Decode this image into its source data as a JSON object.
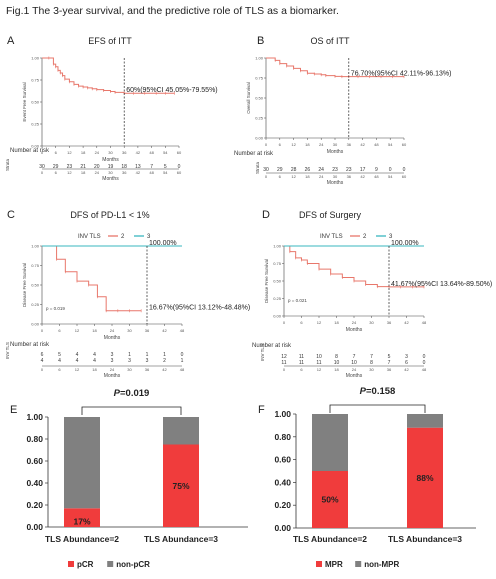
{
  "figure_title": "Fig.1 The 3-year survival, and the predictive role of TLS as a biomarker.",
  "chart_data": [
    {
      "id": "A",
      "panel_letter": "A",
      "type": "line",
      "title": "EFS of ITT",
      "ylabel": "Event Free Survival",
      "xlabel": "Months",
      "xlim": [
        0,
        60
      ],
      "ylim": [
        0,
        1
      ],
      "x_ticks": [
        0,
        6,
        12,
        18,
        24,
        30,
        36,
        42,
        48,
        54,
        60
      ],
      "y_ticks": [
        "0.00",
        "0.25",
        "0.50",
        "0.75",
        "1.00"
      ],
      "series": [
        {
          "color": "#e8776b",
          "x": [
            0,
            3,
            5,
            6,
            7,
            8,
            9,
            10,
            12,
            14,
            16,
            18,
            20,
            22,
            24,
            27,
            30,
            32,
            36,
            40,
            45,
            50,
            54,
            58
          ],
          "y": [
            1.0,
            1.0,
            0.93,
            0.9,
            0.86,
            0.83,
            0.8,
            0.76,
            0.73,
            0.7,
            0.68,
            0.67,
            0.66,
            0.65,
            0.64,
            0.63,
            0.62,
            0.61,
            0.6,
            0.6,
            0.6,
            0.6,
            0.6,
            0.6
          ]
        }
      ],
      "annotation": {
        "text": "60%(95%CI 45.05%-79.55%)",
        "x": 36,
        "y": 0.6
      },
      "risk_table": {
        "header": "Number at risk",
        "row_label": "Strata",
        "rows": [
          [
            "30",
            "29",
            "23",
            "21",
            "20",
            "19",
            "18",
            "13",
            "7",
            "5",
            "0"
          ]
        ],
        "x": [
          0,
          6,
          12,
          18,
          24,
          30,
          36,
          42,
          48,
          54,
          60
        ],
        "xlabel": "Months"
      }
    },
    {
      "id": "B",
      "panel_letter": "B",
      "type": "line",
      "title": "OS of ITT",
      "ylabel": "Overall Survival",
      "xlabel": "Months",
      "xlim": [
        0,
        60
      ],
      "ylim": [
        0,
        1
      ],
      "x_ticks": [
        0,
        6,
        12,
        18,
        24,
        30,
        36,
        42,
        48,
        54,
        60
      ],
      "y_ticks": [
        "0.00",
        "0.25",
        "0.50",
        "0.75",
        "1.00"
      ],
      "series": [
        {
          "color": "#e8776b",
          "x": [
            0,
            4,
            6,
            9,
            12,
            15,
            18,
            21,
            24,
            26,
            30,
            33,
            36,
            40,
            45,
            50,
            55,
            60
          ],
          "y": [
            1.0,
            0.97,
            0.93,
            0.9,
            0.87,
            0.84,
            0.81,
            0.8,
            0.79,
            0.78,
            0.77,
            0.767,
            0.767,
            0.767,
            0.767,
            0.767,
            0.767,
            0.767
          ]
        }
      ],
      "annotation": {
        "text": "76.70%(95%CI 42.11%-96.13%)",
        "x": 36,
        "y": 0.767
      },
      "risk_table": {
        "header": "Number at risk",
        "row_label": "Strata",
        "rows": [
          [
            "30",
            "29",
            "28",
            "26",
            "24",
            "23",
            "23",
            "17",
            "9",
            "0",
            "0"
          ]
        ],
        "x": [
          0,
          6,
          12,
          18,
          24,
          30,
          36,
          42,
          48,
          54,
          60
        ],
        "xlabel": "Months"
      }
    },
    {
      "id": "C",
      "panel_letter": "C",
      "type": "line",
      "title": "DFS of PD-L1 < 1%",
      "legend_title": "INV TLS",
      "legend_position": "top",
      "ylabel": "Disease Free Survival",
      "xlabel": "Months",
      "xlim": [
        0,
        48
      ],
      "ylim": [
        0,
        1
      ],
      "x_ticks": [
        0,
        6,
        12,
        18,
        24,
        30,
        36,
        42,
        48
      ],
      "y_ticks": [
        "0.00",
        "0.25",
        "0.50",
        "0.75",
        "1.00"
      ],
      "series": [
        {
          "name": "2",
          "color": "#e8776b",
          "x": [
            0,
            5,
            8,
            12,
            16,
            19,
            22,
            26,
            30,
            34
          ],
          "y": [
            1.0,
            0.83,
            0.67,
            0.55,
            0.5,
            0.35,
            0.17,
            0.17,
            0.17,
            0.17
          ]
        },
        {
          "name": "3",
          "color": "#3ab7bf",
          "x": [
            0,
            48
          ],
          "y": [
            1.0,
            1.0
          ]
        }
      ],
      "annotations": [
        {
          "text": "100.00%",
          "x": 36,
          "y": 1.0
        },
        {
          "text": "16.67%(95%CI 13.12%-48.48%)",
          "x": 36,
          "y": 0.17
        }
      ],
      "p_text": "p = 0.019",
      "risk_table": {
        "header": "Number at risk",
        "row_label": "INV TLS",
        "rows": [
          [
            "6",
            "5",
            "4",
            "4",
            "3",
            "1",
            "1",
            "1",
            "0"
          ],
          [
            "4",
            "4",
            "4",
            "4",
            "3",
            "3",
            "3",
            "2",
            "1"
          ]
        ],
        "x": [
          0,
          6,
          12,
          18,
          24,
          30,
          36,
          42,
          48
        ],
        "xlabel": "Months"
      }
    },
    {
      "id": "D",
      "panel_letter": "D",
      "type": "line",
      "title": "DFS of Surgery",
      "legend_title": "INV TLS",
      "legend_position": "top",
      "ylabel": "Disease Free Survival",
      "xlabel": "Months",
      "xlim": [
        0,
        48
      ],
      "ylim": [
        0,
        1
      ],
      "x_ticks": [
        0,
        6,
        12,
        18,
        24,
        30,
        36,
        42,
        48
      ],
      "y_ticks": [
        "0.00",
        "0.25",
        "0.50",
        "0.75",
        "1.00"
      ],
      "series": [
        {
          "name": "2",
          "color": "#e8776b",
          "x": [
            0,
            2,
            4,
            6,
            8,
            12,
            16,
            20,
            24,
            28,
            32,
            36,
            40,
            44,
            48
          ],
          "y": [
            1.0,
            0.92,
            0.83,
            0.8,
            0.75,
            0.67,
            0.6,
            0.55,
            0.5,
            0.45,
            0.42,
            0.4167,
            0.4167,
            0.4167,
            0.4167
          ]
        },
        {
          "name": "3",
          "color": "#3ab7bf",
          "x": [
            0,
            48
          ],
          "y": [
            1.0,
            1.0
          ]
        }
      ],
      "annotations": [
        {
          "text": "100.00%",
          "x": 36,
          "y": 1.0
        },
        {
          "text": "41.67%(95%CI 13.64%-89.50%)",
          "x": 36,
          "y": 0.4167
        }
      ],
      "p_text": "p = 0.021",
      "risk_table": {
        "header": "Number at risk",
        "row_label": "INV TLS",
        "rows": [
          [
            "12",
            "11",
            "10",
            "8",
            "7",
            "7",
            "5",
            "3",
            "0"
          ],
          [
            "11",
            "11",
            "11",
            "10",
            "10",
            "8",
            "7",
            "6",
            "0"
          ]
        ],
        "x": [
          0,
          6,
          12,
          18,
          24,
          30,
          36,
          42,
          48
        ],
        "xlabel": "Months"
      }
    },
    {
      "id": "E",
      "panel_letter": "E",
      "type": "bar",
      "stacked": true,
      "categories": [
        "TLS Abundance=2",
        "TLS Abundance=3"
      ],
      "series": [
        {
          "name": "pCR",
          "color": "#f03c3c",
          "values": [
            0.17,
            0.75
          ],
          "labels": [
            "17%",
            "75%"
          ]
        },
        {
          "name": "non-pCR",
          "color": "#808080",
          "values": [
            0.83,
            0.25
          ]
        }
      ],
      "ylim": [
        0,
        1
      ],
      "y_ticks": [
        "0.00",
        "0.20",
        "0.40",
        "0.60",
        "0.80",
        "1.00"
      ],
      "p_label": "P",
      "p_value": "=0.019",
      "legend_position": "bottom"
    },
    {
      "id": "F",
      "panel_letter": "F",
      "type": "bar",
      "stacked": true,
      "categories": [
        "TLS Abundance=2",
        "TLS Abundance=3"
      ],
      "series": [
        {
          "name": "MPR",
          "color": "#f03c3c",
          "values": [
            0.5,
            0.88
          ],
          "labels": [
            "50%",
            "88%"
          ]
        },
        {
          "name": "non-MPR",
          "color": "#808080",
          "values": [
            0.5,
            0.12
          ]
        }
      ],
      "ylim": [
        0,
        1
      ],
      "y_ticks": [
        "0.00",
        "0.20",
        "0.40",
        "0.60",
        "0.80",
        "1.00"
      ],
      "p_label": "P",
      "p_value": "=0.158",
      "legend_position": "bottom"
    }
  ]
}
